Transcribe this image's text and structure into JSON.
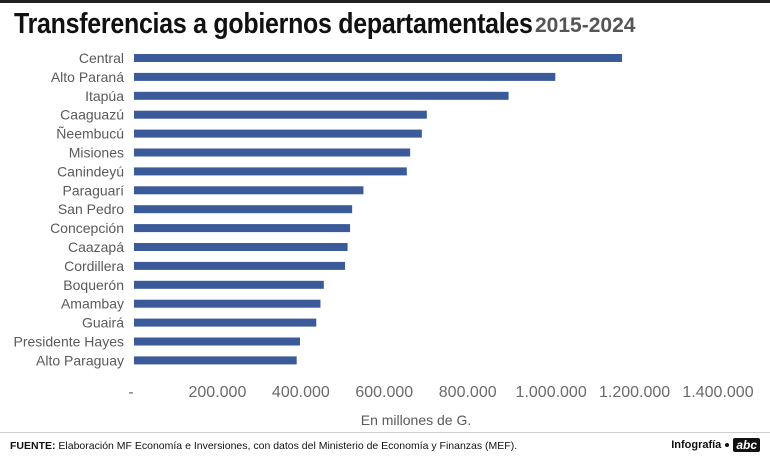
{
  "header": {
    "title": "Transferencias a gobiernos departamentales",
    "period": "2015-2024"
  },
  "chart_data": {
    "type": "bar",
    "orientation": "horizontal",
    "title": "Transferencias a gobiernos departamentales",
    "subtitle": "2015-2024",
    "xlabel": "En millones de G.",
    "ylabel": "",
    "xlim": [
      0,
      1400000
    ],
    "x_ticks": [
      0,
      200000,
      400000,
      600000,
      800000,
      1000000,
      1200000,
      1400000
    ],
    "x_tick_labels": [
      "-",
      "200.000",
      "400.000",
      "600.000",
      "800.000",
      "1.000.000",
      "1.200.000",
      "1.400.000"
    ],
    "grid": false,
    "bar_color": "#3a5a9a",
    "categories": [
      "Central",
      "Alto Paraná",
      "Itapúa",
      "Caaguazú",
      "Ñeembucú",
      "Misiones",
      "Canindeyú",
      "Paraguarí",
      "San Pedro",
      "Concepción",
      "Caazapá",
      "Cordillera",
      "Boquerón",
      "Amambay",
      "Guairá",
      "Presidente Hayes",
      "Alto Paraguay"
    ],
    "values": [
      1170000,
      1010000,
      898000,
      702000,
      690000,
      662000,
      654000,
      550000,
      523000,
      518000,
      512000,
      506000,
      455000,
      447000,
      437000,
      398000,
      390000
    ]
  },
  "footer": {
    "source_label": "FUENTE:",
    "source_text": "Elaboración MF Economía e Inversiones, con datos del Ministerio de Economía y Finanzas (MEF).",
    "brand_label": "Infografía",
    "brand_logo": "abc"
  }
}
